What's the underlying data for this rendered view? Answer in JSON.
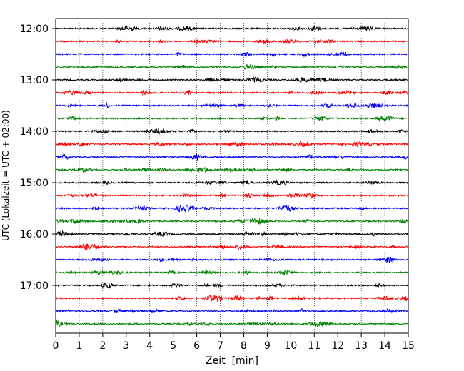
{
  "chart_data": {
    "type": "line",
    "title": "",
    "xlabel": "Zeit  [min]",
    "ylabel": "UTC (Lokalzeit = UTC + 02:00)",
    "xlim": [
      0,
      15
    ],
    "x_ticks": [
      "0",
      "1",
      "2",
      "3",
      "4",
      "5",
      "6",
      "7",
      "8",
      "9",
      "10",
      "11",
      "12",
      "13",
      "14",
      "15"
    ],
    "y_tick_labels": [
      "12:00",
      "13:00",
      "14:00",
      "15:00",
      "16:00",
      "17:00"
    ],
    "grid": "vertical dotted at each minute",
    "trace_interval_minutes": 15,
    "trace_start_times": [
      "12:00",
      "12:15",
      "12:30",
      "12:45",
      "13:00",
      "13:15",
      "13:30",
      "13:45",
      "14:00",
      "14:15",
      "14:30",
      "14:45",
      "15:00",
      "15:15",
      "15:30",
      "15:45",
      "16:00",
      "16:15",
      "16:30",
      "16:45",
      "17:00",
      "17:15",
      "17:30",
      "17:45"
    ],
    "trace_colors": [
      "#000000",
      "#ff0000",
      "#0000ff",
      "#008000"
    ],
    "series_note": "24 seismogram traces, one per 15-minute window, colors cycle black/red/blue/green"
  }
}
